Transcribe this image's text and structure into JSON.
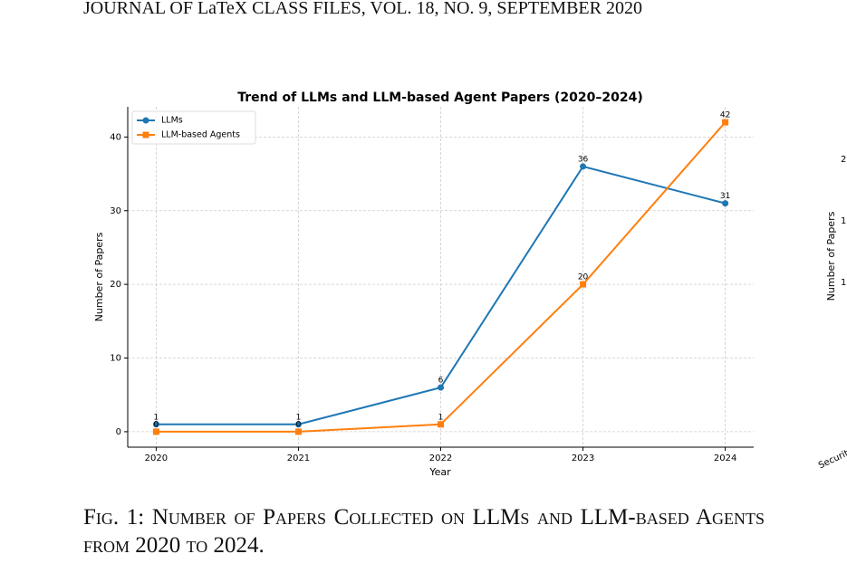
{
  "header": {
    "title": "JOURNAL OF LaTeX CLASS FILES, VOL. 18, NO. 9, SEPTEMBER 2020"
  },
  "chart_data": {
    "type": "line",
    "title": "Trend of LLMs and LLM-based Agent Papers (2020–2024)",
    "x_label": "Year",
    "y_label": "Number of Papers",
    "x": [
      2020,
      2021,
      2022,
      2023,
      2024
    ],
    "series": [
      {
        "name": "LLMs",
        "color": "#1f77b4",
        "marker": "circle",
        "values": [
          1,
          1,
          6,
          36,
          31
        ]
      },
      {
        "name": "LLM-based Agents",
        "color": "#ff7f0e",
        "marker": "square",
        "values": [
          0,
          0,
          1,
          20,
          42
        ]
      }
    ],
    "xlim": [
      2019.8,
      2024.2
    ],
    "xticks": [
      2020,
      2021,
      2022,
      2023,
      2024
    ],
    "ylim": [
      -2.1,
      44.1
    ],
    "yticks": [
      0,
      10,
      20,
      30,
      40
    ],
    "grid": true,
    "legend": "upper-left"
  },
  "side_fragment": {
    "y_label": "Number of Papers",
    "tick_labels": [
      "2",
      "1",
      "1"
    ],
    "x_tick_label": "Securit"
  },
  "caption": {
    "text": "Fig. 1: Number of Papers Collected on LLMs and LLM-based Agents from 2020 to 2024."
  }
}
